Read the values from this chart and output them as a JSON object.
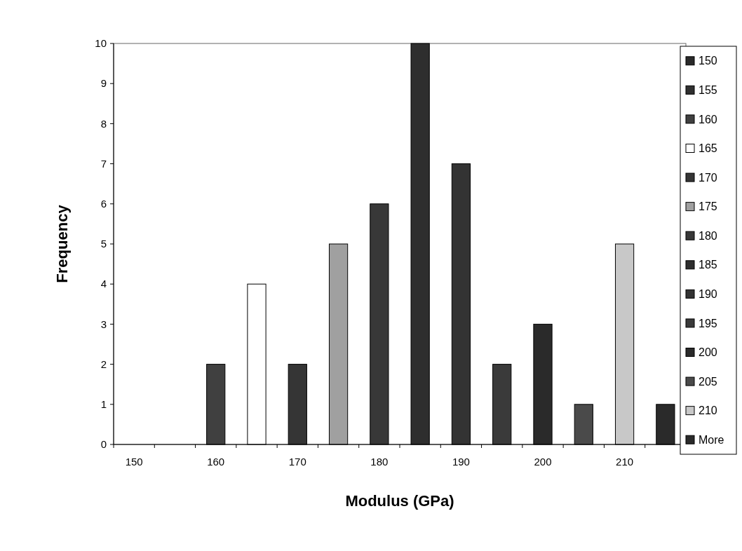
{
  "chart_data": {
    "type": "bar",
    "xlabel": "Modulus (GPa)",
    "ylabel": "Frequency",
    "categories": [
      "150",
      null,
      "160",
      null,
      "170",
      null,
      "180",
      null,
      "190",
      null,
      "200",
      null,
      "210",
      null
    ],
    "ylim": [
      0,
      10
    ],
    "yticks": [
      0,
      1,
      2,
      3,
      4,
      5,
      6,
      7,
      8,
      9,
      10
    ],
    "grid": false,
    "legend": "right",
    "series": [
      {
        "name": "150",
        "color": "#2a2a2a",
        "values": [
          0,
          null,
          null,
          null,
          null,
          null,
          null,
          null,
          null,
          null,
          null,
          null,
          null,
          null
        ]
      },
      {
        "name": "155",
        "color": "#303030",
        "values": [
          null,
          0,
          null,
          null,
          null,
          null,
          null,
          null,
          null,
          null,
          null,
          null,
          null,
          null
        ]
      },
      {
        "name": "160",
        "color": "#404040",
        "values": [
          null,
          null,
          2,
          null,
          null,
          null,
          null,
          null,
          null,
          null,
          null,
          null,
          null,
          null
        ]
      },
      {
        "name": "165",
        "color": "#ffffff",
        "values": [
          null,
          null,
          null,
          4,
          null,
          null,
          null,
          null,
          null,
          null,
          null,
          null,
          null,
          null
        ]
      },
      {
        "name": "170",
        "color": "#353535",
        "values": [
          null,
          null,
          null,
          null,
          2,
          null,
          null,
          null,
          null,
          null,
          null,
          null,
          null,
          null
        ]
      },
      {
        "name": "175",
        "color": "#a0a0a0",
        "values": [
          null,
          null,
          null,
          null,
          null,
          5,
          null,
          null,
          null,
          null,
          null,
          null,
          null,
          null
        ]
      },
      {
        "name": "180",
        "color": "#383838",
        "values": [
          null,
          null,
          null,
          null,
          null,
          null,
          6,
          null,
          null,
          null,
          null,
          null,
          null,
          null
        ]
      },
      {
        "name": "185",
        "color": "#2e2e2e",
        "values": [
          null,
          null,
          null,
          null,
          null,
          null,
          null,
          10,
          null,
          null,
          null,
          null,
          null,
          null
        ]
      },
      {
        "name": "190",
        "color": "#333333",
        "values": [
          null,
          null,
          null,
          null,
          null,
          null,
          null,
          null,
          7,
          null,
          null,
          null,
          null,
          null
        ]
      },
      {
        "name": "195",
        "color": "#3a3a3a",
        "values": [
          null,
          null,
          null,
          null,
          null,
          null,
          null,
          null,
          null,
          2,
          null,
          null,
          null,
          null
        ]
      },
      {
        "name": "200",
        "color": "#2a2a2a",
        "values": [
          null,
          null,
          null,
          null,
          null,
          null,
          null,
          null,
          null,
          null,
          3,
          null,
          null,
          null
        ]
      },
      {
        "name": "205",
        "color": "#4a4a4a",
        "values": [
          null,
          null,
          null,
          null,
          null,
          null,
          null,
          null,
          null,
          null,
          null,
          1,
          null,
          null
        ]
      },
      {
        "name": "210",
        "color": "#c8c8c8",
        "values": [
          null,
          null,
          null,
          null,
          null,
          null,
          null,
          null,
          null,
          null,
          null,
          null,
          5,
          null
        ]
      },
      {
        "name": "More",
        "color": "#2a2a2a",
        "values": [
          null,
          null,
          null,
          null,
          null,
          null,
          null,
          null,
          null,
          null,
          null,
          null,
          null,
          1
        ]
      }
    ]
  }
}
